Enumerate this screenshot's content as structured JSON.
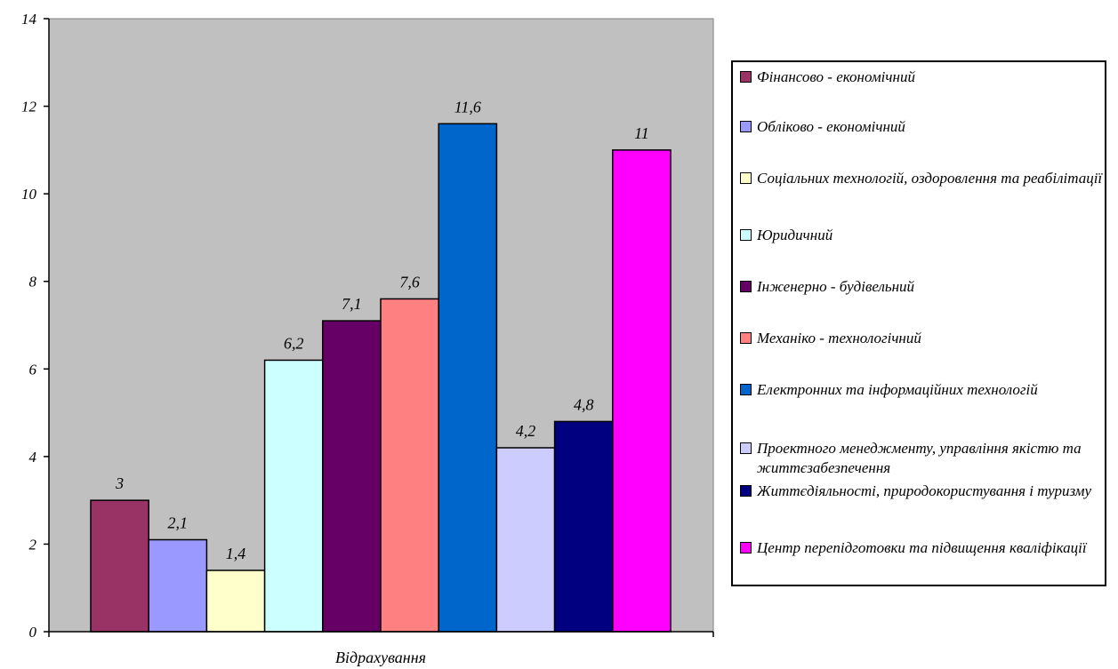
{
  "chart_data": {
    "type": "bar",
    "categories": [
      "Відрахування"
    ],
    "series": [
      {
        "name": "Фінансово - економічний",
        "values": [
          3
        ],
        "color": "#993366"
      },
      {
        "name": "Обліково - економічний",
        "values": [
          2.1
        ],
        "color": "#9999FF"
      },
      {
        "name": "Соціальних технологій, оздоровлення та реабілітації",
        "values": [
          1.4
        ],
        "color": "#FFFFCC"
      },
      {
        "name": "Юридичний",
        "values": [
          6.2
        ],
        "color": "#CCFFFF"
      },
      {
        "name": "Інженерно - будівельний",
        "values": [
          7.1
        ],
        "color": "#660066"
      },
      {
        "name": "Механіко - технологічний",
        "values": [
          7.6
        ],
        "color": "#FF8080"
      },
      {
        "name": "Електронних та інформаційних технологій",
        "values": [
          11.6
        ],
        "color": "#0066CC"
      },
      {
        "name": "Проектного менеджменту, управління якістю та життєзабезпечення",
        "values": [
          4.2
        ],
        "color": "#CCCCFF"
      },
      {
        "name": "Життєдіяльності, природокористування і туризму",
        "values": [
          4.8
        ],
        "color": "#000080"
      },
      {
        "name": "Центр перепідготовки та підвищення кваліфікації",
        "values": [
          11
        ],
        "color": "#FF00FF"
      }
    ],
    "data_labels": [
      "3",
      "2,1",
      "1,4",
      "6,2",
      "7,1",
      "7,6",
      "11,6",
      "4,2",
      "4,8",
      "11"
    ],
    "y_ticks": [
      "0",
      "2",
      "4",
      "6",
      "8",
      "10",
      "12",
      "14"
    ],
    "ylim": [
      0,
      14
    ],
    "plot_background": "#C0C0C0",
    "grid": false,
    "legend_position": "right"
  }
}
